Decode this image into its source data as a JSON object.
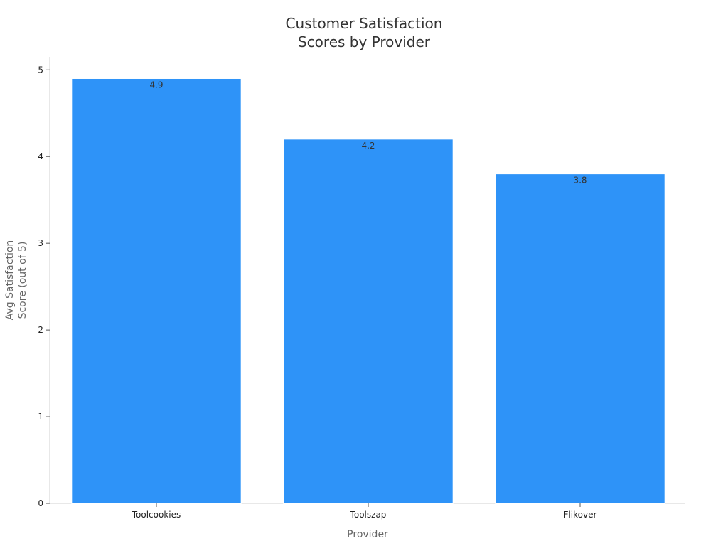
{
  "chart_data": {
    "type": "bar",
    "title_lines": [
      "Customer Satisfaction",
      "Scores by Provider"
    ],
    "xlabel": "Provider",
    "ylabel_lines": [
      "Avg Satisfaction",
      "Score (out of 5)"
    ],
    "categories": [
      "Toolcookies",
      "Toolszap",
      "Flikover"
    ],
    "values": [
      4.9,
      4.2,
      3.8
    ],
    "data_labels": [
      "4.9",
      "4.2",
      "3.8"
    ],
    "ylim": [
      0,
      5.15
    ],
    "yticks": [
      0,
      1,
      2,
      3,
      4,
      5
    ],
    "grid": false,
    "legend": "none",
    "bar_color": "#2e93f8"
  }
}
